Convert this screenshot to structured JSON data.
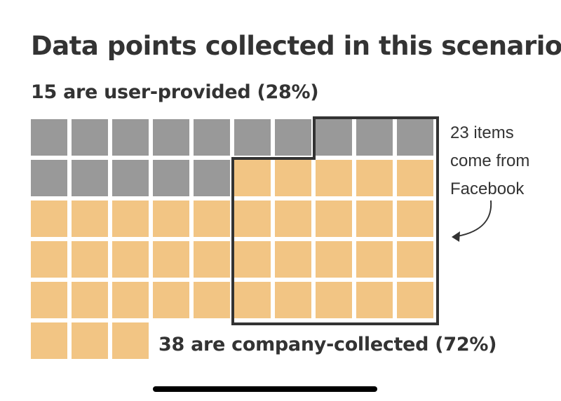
{
  "chart_data": {
    "type": "waffle",
    "title": "Data points collected in this scenario",
    "total": 53,
    "columns": 10,
    "categories": [
      {
        "label": "15 are user-provided (28%)",
        "count": 15,
        "percent": 28,
        "color": "#999999"
      },
      {
        "label": "38 are company-collected (72%)",
        "count": 38,
        "percent": 72,
        "color": "#F2C584"
      }
    ],
    "highlight": {
      "label_lines": [
        "23 items",
        "come from",
        "Facebook"
      ],
      "count": 23,
      "border_color": "#333333"
    }
  },
  "colors": {
    "user_provided": "#999999",
    "company_collected": "#F2C584",
    "outline": "#333333"
  }
}
